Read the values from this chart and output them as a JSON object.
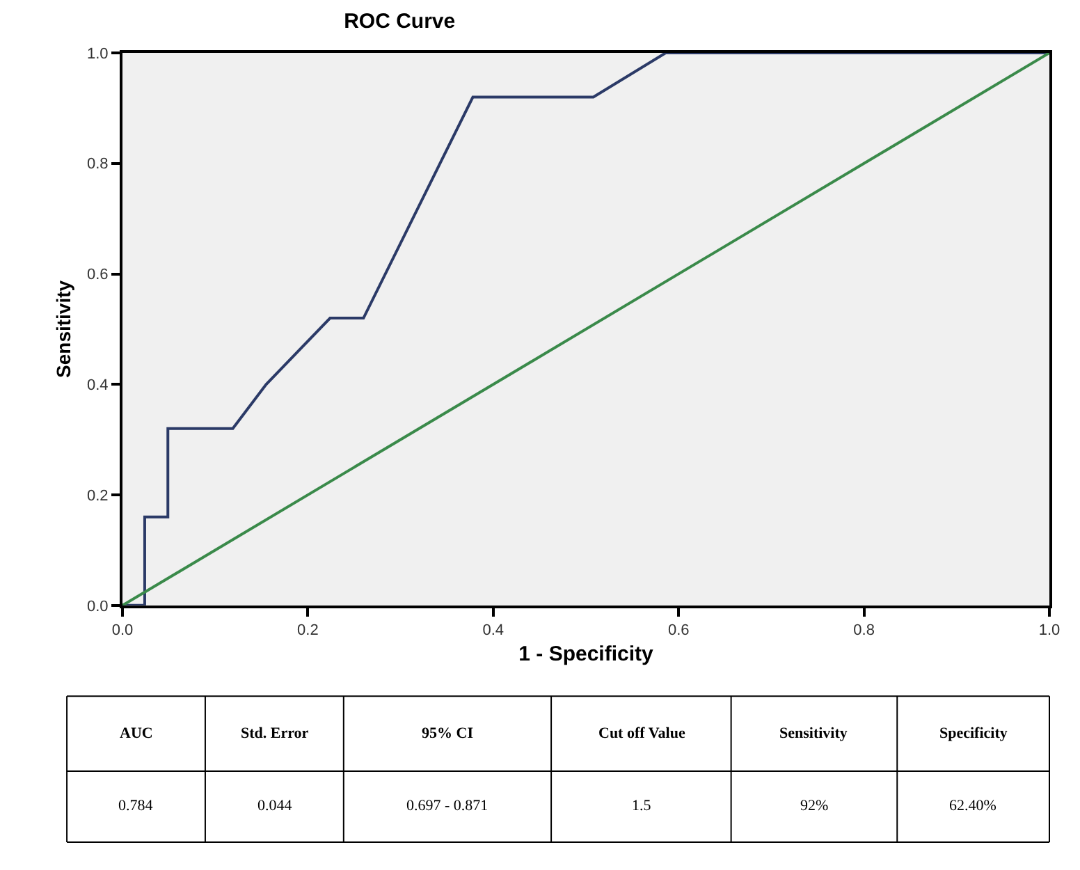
{
  "chart_data": {
    "type": "line",
    "title": "ROC Curve",
    "xlabel": "1 - Specificity",
    "ylabel": "Sensitivity",
    "series": [
      {
        "color": "#2b3a67",
        "x": [
          0,
          0.024,
          0.024,
          0.049,
          0.049,
          0.119,
          0.155,
          0.224,
          0.26,
          0.378,
          0.508,
          0.586,
          1
        ],
        "values": [
          0,
          0,
          0.16,
          0.16,
          0.32,
          0.32,
          0.4,
          0.52,
          0.52,
          0.92,
          0.92,
          1,
          1
        ]
      },
      {
        "color": "#3a8a4a",
        "x": [
          0,
          1
        ],
        "values": [
          0,
          1
        ]
      }
    ],
    "xlim": [
      0,
      1
    ],
    "ylim": [
      0,
      1
    ],
    "xticks": [
      {
        "value": 0,
        "label": "0.0"
      },
      0.2,
      0.4,
      0.6,
      0.8,
      {
        "value": 1,
        "label": "1.0"
      }
    ],
    "yticks": [
      {
        "value": 0,
        "label": "0.0"
      },
      0.2,
      0.4,
      0.6,
      0.8,
      {
        "value": 1,
        "label": "1.0"
      }
    ],
    "grid": false,
    "marker": "none",
    "line_style": "solid",
    "annotations": [
      "AUC",
      "Std. Error",
      "95% CI",
      "Cut off Value",
      "Sensitivity",
      "Specificity",
      "0.784",
      "0.044",
      "0.697 - 0.871",
      "1.5",
      "92%",
      "62.40%"
    ]
  }
}
